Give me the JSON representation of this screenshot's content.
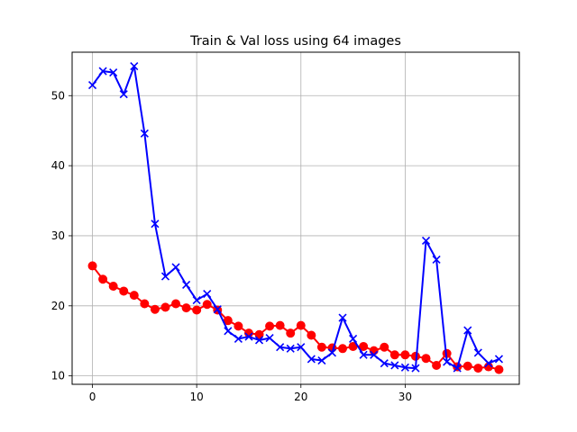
{
  "chart_data": {
    "type": "line",
    "title": "Train & Val loss using 64 images",
    "xlabel": "",
    "ylabel": "",
    "xlim": [
      -1.95,
      40.95
    ],
    "ylim": [
      8.8,
      56.2
    ],
    "xticks": [
      0,
      10,
      20,
      30
    ],
    "yticks": [
      10,
      20,
      30,
      40,
      50
    ],
    "grid": true,
    "legend": "none",
    "x": [
      0,
      1,
      2,
      3,
      4,
      5,
      6,
      7,
      8,
      9,
      10,
      11,
      12,
      13,
      14,
      15,
      16,
      17,
      18,
      19,
      20,
      21,
      22,
      23,
      24,
      25,
      26,
      27,
      28,
      29,
      30,
      31,
      32,
      33,
      34,
      35,
      36,
      37,
      38,
      39
    ],
    "series": [
      {
        "color": "#ff0000",
        "marker": "circle",
        "values": [
          25.7,
          23.8,
          22.8,
          22.1,
          21.5,
          20.3,
          19.5,
          19.8,
          20.3,
          19.7,
          19.4,
          20.2,
          19.4,
          17.9,
          17.1,
          16.1,
          15.9,
          17.1,
          17.2,
          16.1,
          17.2,
          15.8,
          14.1,
          14.0,
          13.9,
          14.2,
          14.2,
          13.6,
          14.1,
          13.0,
          13.0,
          12.8,
          12.5,
          11.5,
          13.2,
          11.3,
          11.4,
          11.1,
          11.3,
          10.9
        ]
      },
      {
        "color": "#0000ff",
        "marker": "x",
        "values": [
          51.5,
          53.5,
          53.3,
          50.2,
          54.2,
          44.6,
          31.7,
          24.2,
          25.5,
          23.0,
          20.8,
          21.7,
          19.5,
          16.4,
          15.3,
          15.6,
          15.1,
          15.4,
          14.1,
          13.9,
          14.1,
          12.4,
          12.2,
          13.3,
          18.3,
          15.3,
          13.0,
          13.0,
          11.8,
          11.5,
          11.2,
          11.1,
          29.3,
          26.6,
          12.0,
          11.1,
          16.5,
          13.3,
          11.8,
          12.4
        ]
      }
    ]
  }
}
